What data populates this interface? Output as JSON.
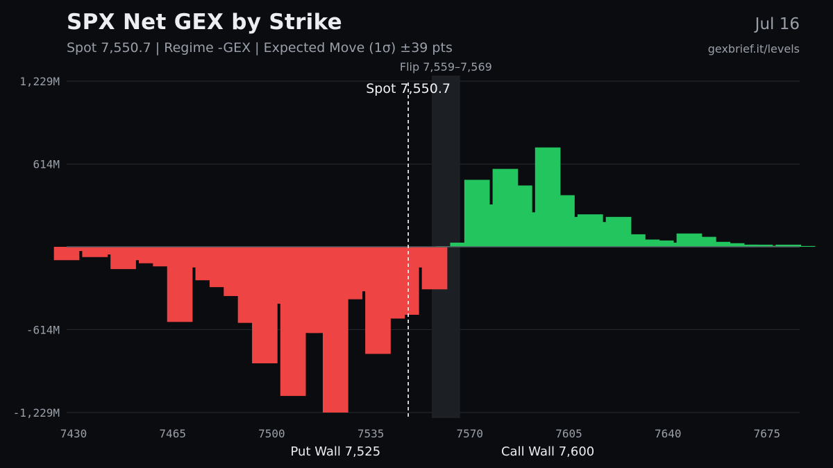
{
  "header": {
    "title": "SPX Net GEX by Strike",
    "subtitle": "Spot 7,550.7 | Regime -GEX | Expected Move (1σ) ±39 pts",
    "date": "Jul 16",
    "source": "gexbrief.it/levels"
  },
  "colors": {
    "background": "#0b0c0f",
    "positive": "#22c55e",
    "negative": "#ef4444",
    "grid": "#262a31",
    "zero_line": "#555a63",
    "flip_zone": "#1c1f24",
    "spot_line": "#ffffff",
    "muted_text": "#9aa0aa"
  },
  "chart_data": {
    "type": "bar",
    "xlabel": "",
    "ylabel": "",
    "xlim": [
      7430,
      7689
    ],
    "ylim": [
      -1229,
      1229
    ],
    "y_unit": "M",
    "y_ticks": [
      1229,
      614,
      -614,
      -1229
    ],
    "y_tick_labels": [
      "1,229M",
      "614M",
      "-614M",
      "-1,229M"
    ],
    "x_ticks": [
      7430,
      7465,
      7500,
      7535,
      7570,
      7605,
      7640,
      7675
    ],
    "x_tick_labels": [
      "7430",
      "7465",
      "7500",
      "7535",
      "7570",
      "7605",
      "7640",
      "7675"
    ],
    "grid": true,
    "bar_width": 4.5,
    "series": [
      {
        "x": [
          7430,
          7435,
          7440,
          7445,
          7450,
          7455,
          7460,
          7465,
          7470,
          7475,
          7480,
          7485,
          7490,
          7495,
          7500,
          7505,
          7510,
          7515,
          7520,
          7525,
          7530,
          7535,
          7540,
          7545,
          7550,
          7555,
          7560,
          7565,
          7570,
          7575,
          7580,
          7585,
          7590,
          7595,
          7600,
          7605,
          7610,
          7615,
          7620,
          7625,
          7630,
          7635,
          7640,
          7645,
          7650,
          7655,
          7660,
          7665,
          7670,
          7675,
          7680,
          7685,
          7690
        ],
        "values": [
          -99,
          -31,
          -76,
          -57,
          -165,
          -99,
          -122,
          -145,
          -557,
          -153,
          -248,
          -299,
          -365,
          -564,
          -864,
          -422,
          -1106,
          -639,
          -639,
          -1229,
          -389,
          -330,
          -794,
          -532,
          -504,
          -153,
          -315,
          5,
          31,
          497,
          314,
          578,
          455,
          256,
          737,
          383,
          222,
          241,
          184,
          222,
          93,
          54,
          47,
          31,
          99,
          74,
          37,
          27,
          16,
          16,
          8,
          16,
          6
        ]
      }
    ],
    "annotations": {
      "spot": {
        "value": 7550.7,
        "label": "Spot 7,550.7"
      },
      "flip": {
        "range": [
          7559,
          7569
        ],
        "label": "Flip 7,559–7,569"
      },
      "put_wall": {
        "value": 7525,
        "label": "Put Wall 7,525"
      },
      "call_wall": {
        "value": 7600,
        "label": "Call Wall 7,600"
      }
    }
  }
}
